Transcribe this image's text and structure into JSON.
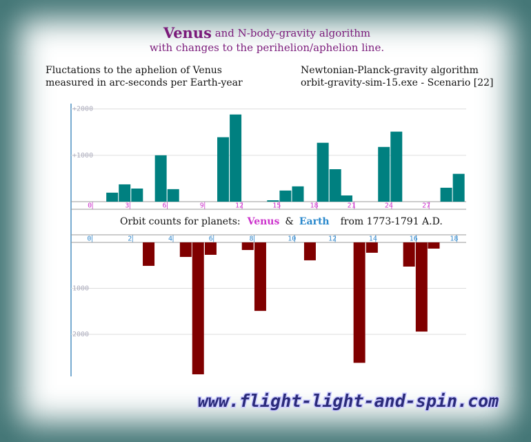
{
  "header": {
    "title_planet": "Venus",
    "title_rest": "and N-body-gravity algorithm",
    "subtitle": "with changes to the perihelion/aphelion line."
  },
  "left_note": [
    "Fluctations to the aphelion of Venus",
    "measured in arc-seconds per Earth-year"
  ],
  "right_note": [
    "Newtonian-Planck-gravity algorithm",
    "orbit-gravity-sim-15.exe  -  Scenario [22]"
  ],
  "middle_caption": {
    "prefix": "Orbit counts for planets:",
    "planet1": "Venus",
    "joiner": "&",
    "planet2": "Earth",
    "suffix": "from 1773-1791 A.D."
  },
  "chart_data": [
    {
      "type": "bar",
      "color": "#008080",
      "label_color": "#cc33cc",
      "x": [
        1.8,
        2.8,
        3.8,
        5.7,
        6.7,
        10.7,
        11.7,
        14.7,
        15.7,
        16.7,
        18.7,
        19.7,
        20.6,
        23.6,
        24.6,
        28.6,
        29.6
      ],
      "values": [
        194,
        373,
        283,
        1000,
        270,
        1390,
        1880,
        30,
        240,
        330,
        1270,
        700,
        134,
        1180,
        1510,
        300,
        600
      ],
      "xlim": [
        -1.5,
        30.2
      ],
      "xticks": [
        0,
        3,
        6,
        9,
        12,
        15,
        18,
        21,
        24,
        27
      ],
      "ylim": [
        0,
        2100
      ],
      "yticks": [
        {
          "value": 1000,
          "label": "+1000"
        },
        {
          "value": 2000,
          "label": "+2000"
        }
      ],
      "grid": true
    },
    {
      "type": "bar",
      "color": "#800000",
      "label_color": "#3388cc",
      "x": [
        2.93,
        4.76,
        5.37,
        5.99,
        7.82,
        8.44,
        10.89,
        13.33,
        13.95,
        15.78,
        16.4,
        17.0
      ],
      "values": [
        -510,
        -316,
        -2870,
        -270,
        -165,
        -1490,
        -390,
        -2620,
        -225,
        -526,
        -1940,
        -135
      ],
      "xlim": [
        -0.9,
        18.6
      ],
      "xticks": [
        0,
        2,
        4,
        6,
        8,
        10,
        12,
        14,
        16,
        18
      ],
      "ylim": [
        -2900,
        0
      ],
      "yticks": [
        {
          "value": -1000,
          "label": "1000"
        },
        {
          "value": -2000,
          "label": "2000"
        }
      ],
      "grid": true
    }
  ],
  "footer": "www.flight-light-and-spin.com"
}
